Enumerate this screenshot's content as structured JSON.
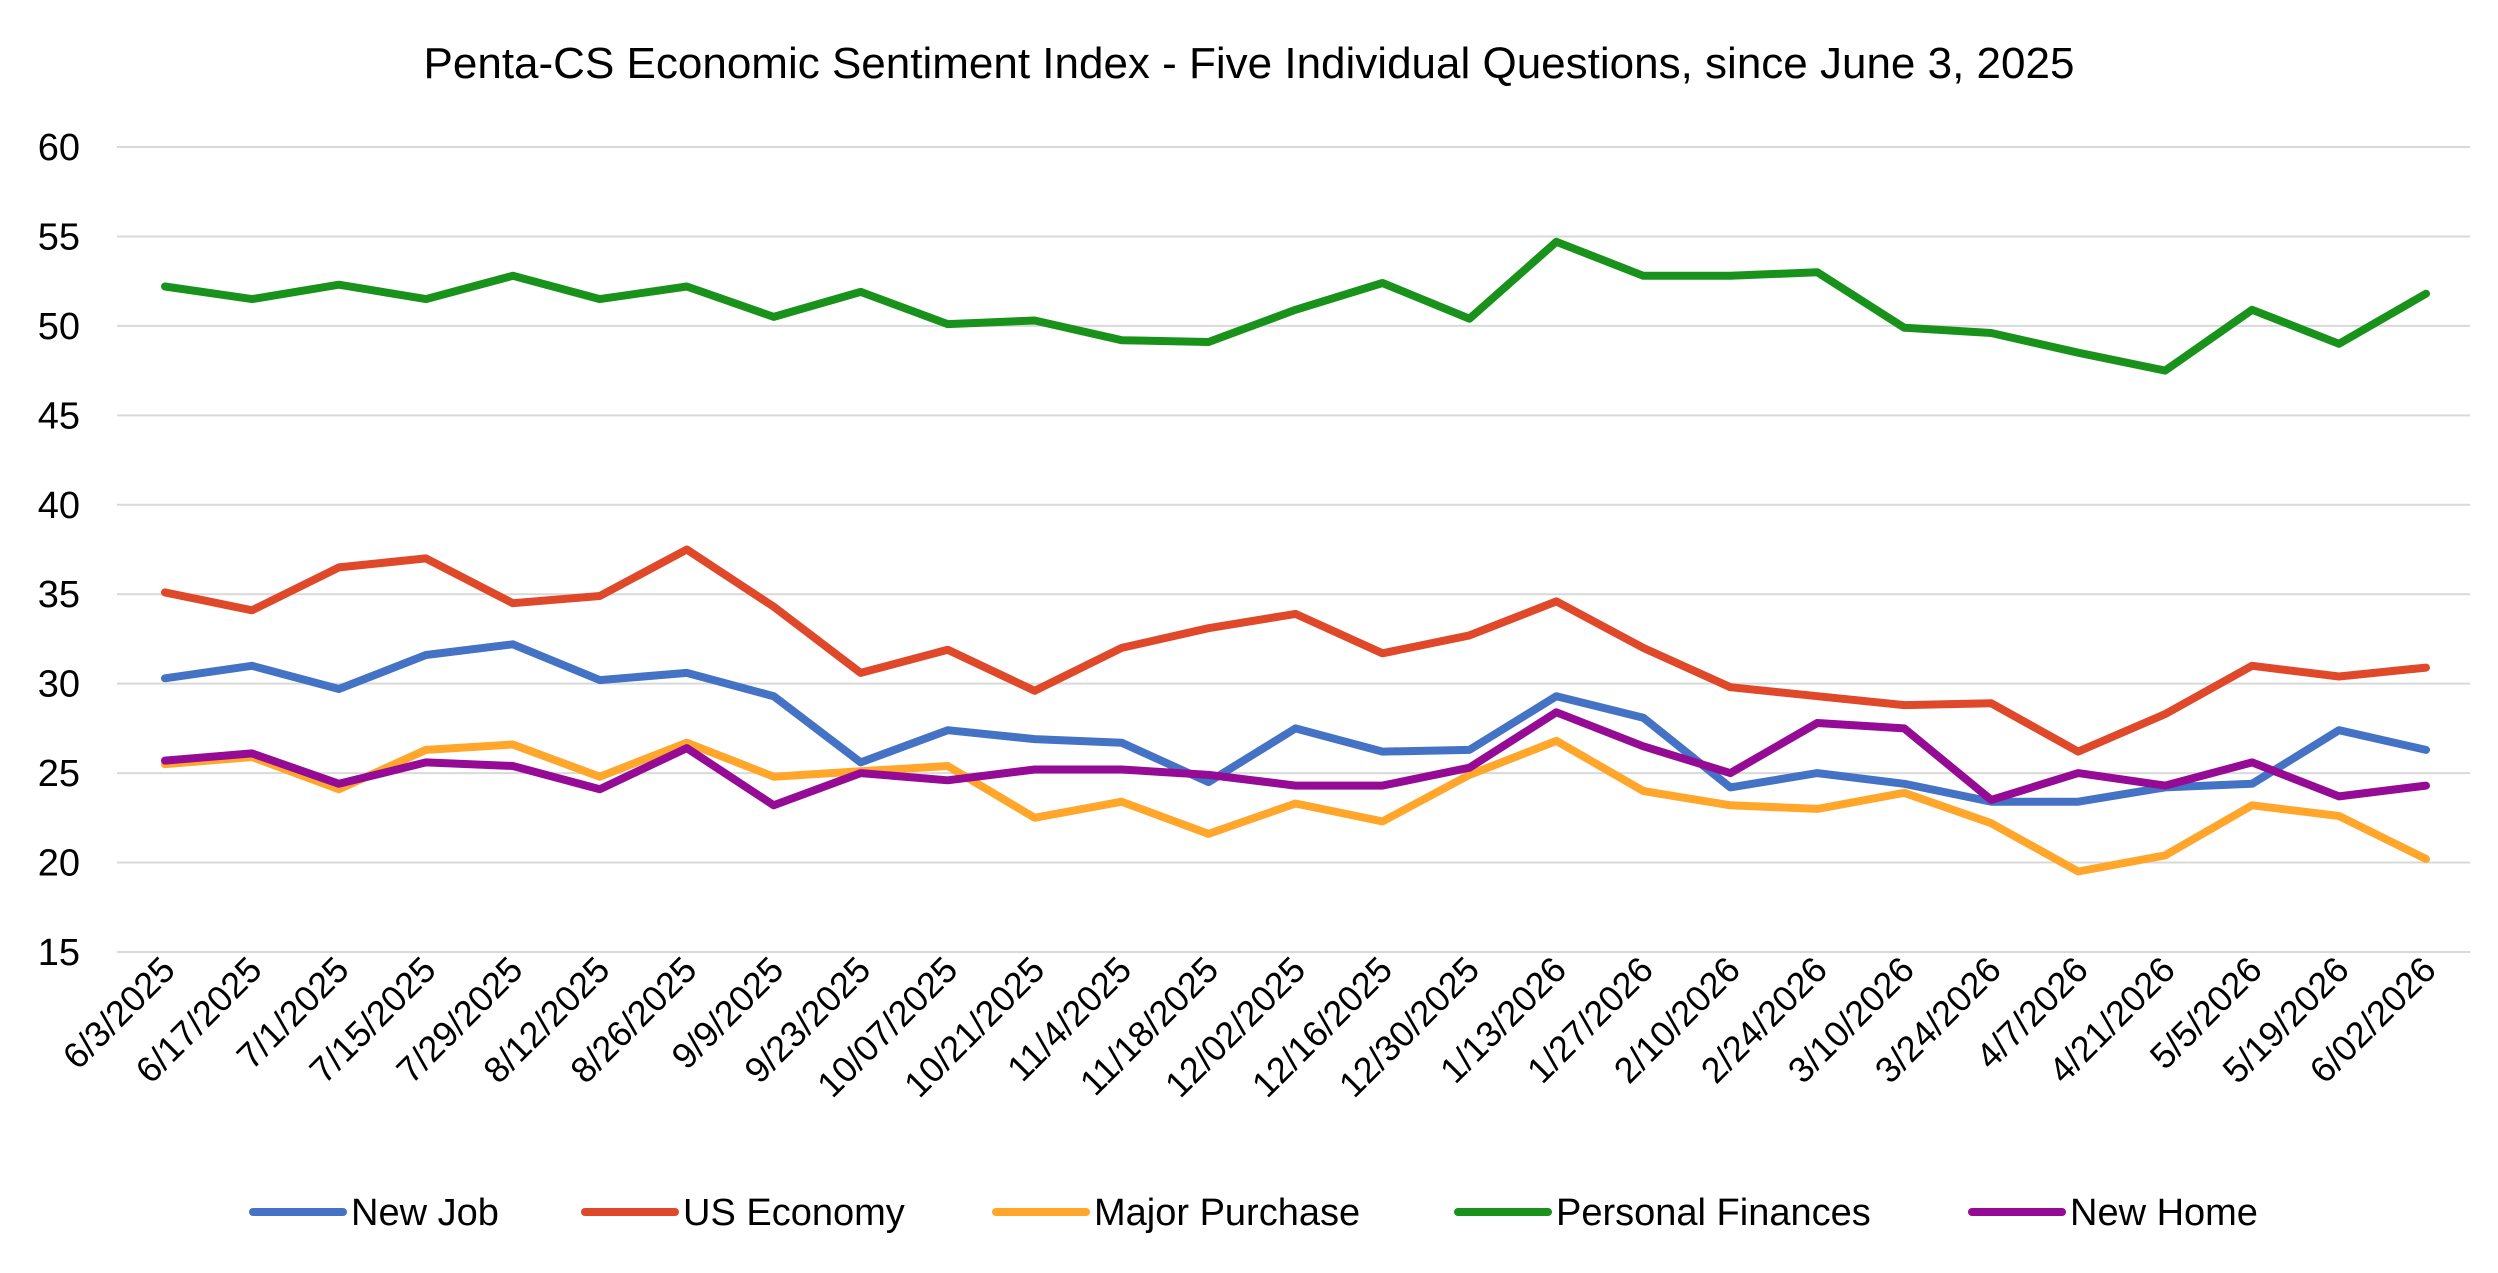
{
  "chart_data": {
    "type": "line",
    "title": "Penta-CS Economic Sentiment Index - Five Individual Questions, since June 3, 2025",
    "xlabel": "",
    "ylabel": "",
    "ylim": [
      15,
      60
    ],
    "yticks": [
      15,
      20,
      25,
      30,
      35,
      40,
      45,
      50,
      55,
      60
    ],
    "grid": true,
    "legend_position": "bottom",
    "categories": [
      "6/3/2025",
      "6/17/2025",
      "7/1/2025",
      "7/15/2025",
      "7/29/2025",
      "8/12/2025",
      "8/26/2025",
      "9/9/2025",
      "9/23/2025",
      "10/07/2025",
      "10/21/2025",
      "11/4/2025",
      "11/18/2025",
      "12/02/2025",
      "12/16/2025",
      "12/30/2025",
      "1/13/2026",
      "1/27/2026",
      "2/10/2026",
      "2/24/2026",
      "3/10/2026",
      "3/24/2026",
      "4/7/2026",
      "4/21/2026",
      "5/5/2026",
      "5/19/2026",
      "6/02/2026"
    ],
    "series": [
      {
        "name": "New Job",
        "color": "#4472C4",
        "values": [
          30.3,
          31.0,
          29.7,
          31.6,
          32.2,
          30.2,
          30.6,
          29.3,
          25.6,
          27.4,
          26.9,
          26.7,
          24.5,
          27.5,
          26.2,
          26.3,
          29.3,
          28.1,
          24.2,
          25.0,
          24.4,
          23.4,
          23.4,
          24.2,
          24.4,
          27.4,
          26.3
        ]
      },
      {
        "name": "US Economy",
        "color": "#E0482A",
        "values": [
          35.1,
          34.1,
          36.5,
          37.0,
          34.5,
          34.9,
          37.5,
          34.3,
          30.6,
          31.9,
          29.6,
          32.0,
          33.1,
          33.9,
          31.7,
          32.7,
          34.6,
          32.0,
          29.8,
          29.3,
          28.8,
          28.9,
          26.2,
          28.3,
          31.0,
          30.4,
          30.9
        ]
      },
      {
        "name": "Major Purchase",
        "color": "#FFA62B",
        "values": [
          25.5,
          25.9,
          24.1,
          26.3,
          26.6,
          24.8,
          26.7,
          24.8,
          25.1,
          25.4,
          22.5,
          23.4,
          21.6,
          23.3,
          22.3,
          24.9,
          26.8,
          24.0,
          23.2,
          23.0,
          23.9,
          22.2,
          19.5,
          20.4,
          23.2,
          22.6,
          20.2
        ]
      },
      {
        "name": "Personal Finances",
        "color": "#18921A",
        "values": [
          52.2,
          51.5,
          52.3,
          51.5,
          52.8,
          51.5,
          52.2,
          50.5,
          51.9,
          50.1,
          50.3,
          49.2,
          49.1,
          50.9,
          52.4,
          50.4,
          54.7,
          52.8,
          52.8,
          53.0,
          49.9,
          49.6,
          48.5,
          47.5,
          50.9,
          49.0,
          51.8
        ]
      },
      {
        "name": "New Home",
        "color": "#950B95",
        "values": [
          25.7,
          26.1,
          24.4,
          25.6,
          25.4,
          24.1,
          26.4,
          23.2,
          25.0,
          24.6,
          25.2,
          25.2,
          24.9,
          24.3,
          24.3,
          25.3,
          28.4,
          26.5,
          25.0,
          27.8,
          27.5,
          23.5,
          25.0,
          24.3,
          25.6,
          23.7,
          24.3
        ]
      }
    ]
  }
}
